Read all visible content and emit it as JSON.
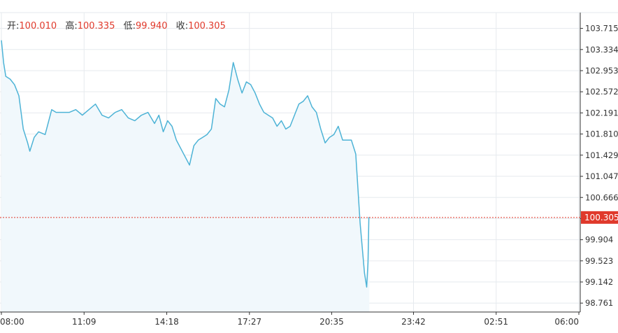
{
  "ohlc": {
    "open_label": "开",
    "open_value": "100.010",
    "high_label": "高",
    "high_value": "100.335",
    "low_label": "低",
    "low_value": "99.940",
    "close_label": "收",
    "close_value": "100.305"
  },
  "colors": {
    "line": "#4db3d6",
    "area": "#f1f8fc",
    "grid": "#e6eaee",
    "axis": "#333333",
    "ohlc_value": "#e0392b",
    "price_tag": "#e0392b"
  },
  "chart_data": {
    "type": "area",
    "title": "",
    "xlabel": "",
    "ylabel": "",
    "ylim": [
      98.6,
      104.0
    ],
    "xlim": [
      "08:00",
      "06:00"
    ],
    "x_tick_labels": [
      "08:00",
      "11:09",
      "14:18",
      "17:27",
      "20:35",
      "23:42",
      "02:51",
      "06:00"
    ],
    "y_ticks": [
      103.715,
      103.334,
      102.953,
      102.572,
      102.191,
      101.81,
      101.429,
      101.047,
      100.666,
      100.285,
      99.904,
      99.523,
      99.142,
      98.761
    ],
    "y_tick_labels": [
      "103.715",
      "103.334",
      "102.953",
      "102.572",
      "102.191",
      "101.810",
      "101.429",
      "101.047",
      "100.666",
      "",
      "99.904",
      "99.523",
      "99.142",
      "98.761"
    ],
    "current_price": 100.305,
    "current_price_label": "100.305",
    "grid": true,
    "series": [
      {
        "x": [
          "08:00",
          "08:05",
          "08:10",
          "08:20",
          "08:30",
          "08:40",
          "08:50",
          "09:00",
          "09:05",
          "09:15",
          "09:25",
          "09:40",
          "09:55",
          "10:05",
          "10:20",
          "10:35",
          "10:50",
          "11:05",
          "11:20",
          "11:35",
          "11:50",
          "12:05",
          "12:20",
          "12:35",
          "12:50",
          "13:05",
          "13:20",
          "13:35",
          "13:50",
          "14:00",
          "14:10",
          "14:20",
          "14:30",
          "14:40",
          "14:50",
          "15:00",
          "15:10",
          "15:20",
          "15:30",
          "15:40",
          "15:50",
          "16:00",
          "16:10",
          "16:20",
          "16:30",
          "16:40",
          "16:50",
          "17:00",
          "17:10",
          "17:20",
          "17:30",
          "17:40",
          "17:50",
          "18:00",
          "18:10",
          "18:20",
          "18:30",
          "18:40",
          "18:50",
          "19:00",
          "19:10",
          "19:20",
          "19:30",
          "19:40",
          "19:50",
          "20:00",
          "20:10",
          "20:20",
          "20:30",
          "20:40",
          "20:50",
          "21:00",
          "21:10",
          "21:20",
          "21:30",
          "21:40",
          "21:50",
          "21:55",
          "21:58",
          "22:00",
          "22:00",
          "22:01"
        ],
        "values": [
          103.5,
          103.1,
          102.85,
          102.8,
          102.7,
          102.5,
          101.9,
          101.65,
          101.5,
          101.75,
          101.85,
          101.8,
          102.25,
          102.2,
          102.2,
          102.2,
          102.25,
          102.15,
          102.25,
          102.35,
          102.15,
          102.1,
          102.2,
          102.25,
          102.1,
          102.05,
          102.15,
          102.2,
          102.0,
          102.15,
          101.85,
          102.05,
          101.95,
          101.7,
          101.55,
          101.4,
          101.25,
          101.6,
          101.7,
          101.75,
          101.8,
          101.9,
          102.45,
          102.35,
          102.3,
          102.6,
          103.1,
          102.8,
          102.55,
          102.75,
          102.7,
          102.55,
          102.35,
          102.2,
          102.15,
          102.1,
          101.95,
          102.05,
          101.9,
          101.95,
          102.15,
          102.35,
          102.4,
          102.5,
          102.3,
          102.2,
          101.9,
          101.65,
          101.75,
          101.8,
          101.95,
          101.7,
          101.7,
          101.7,
          101.45,
          100.2,
          99.3,
          99.05,
          99.5,
          100.305,
          100.305,
          100.305
        ]
      }
    ]
  }
}
